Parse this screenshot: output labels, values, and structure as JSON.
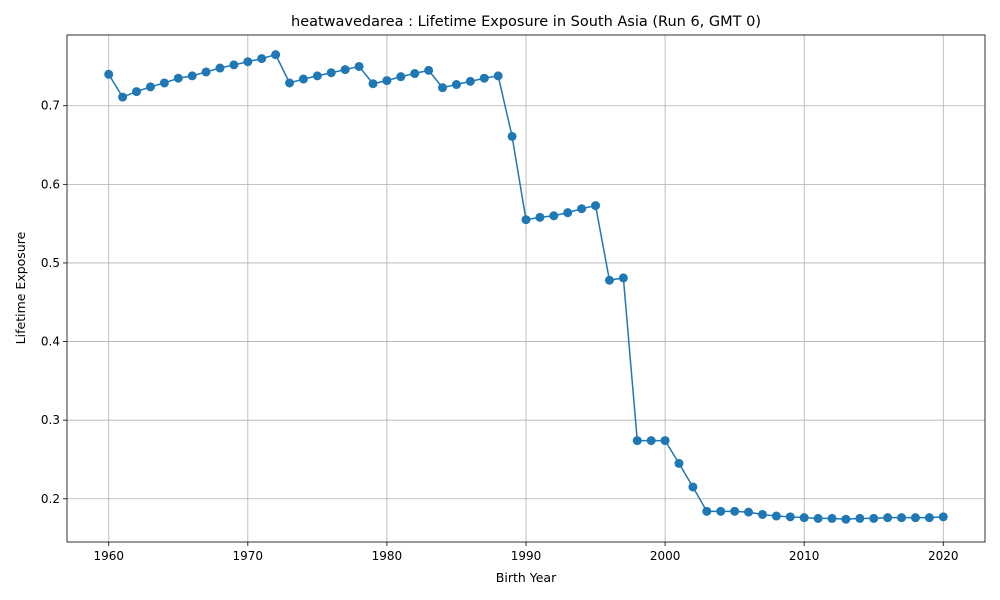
{
  "chart_data": {
    "type": "line",
    "title": "heatwavedarea : Lifetime Exposure in South Asia (Run 6, GMT 0)",
    "xlabel": "Birth Year",
    "ylabel": "Lifetime Exposure",
    "xlim": [
      1957,
      2023
    ],
    "ylim": [
      0.145,
      0.79
    ],
    "xticks": [
      1960,
      1970,
      1980,
      1990,
      2000,
      2010,
      2020
    ],
    "yticks": [
      0.2,
      0.3,
      0.4,
      0.5,
      0.6,
      0.7
    ],
    "grid": true,
    "marker": "circle",
    "color": "#1f77b4",
    "series": [
      {
        "x": [
          1960,
          1961,
          1962,
          1963,
          1964,
          1965,
          1966,
          1967,
          1968,
          1969,
          1970,
          1971,
          1972,
          1973,
          1974,
          1975,
          1976,
          1977,
          1978,
          1979,
          1980,
          1981,
          1982,
          1983,
          1984,
          1985,
          1986,
          1987,
          1988,
          1989,
          1990,
          1991,
          1992,
          1993,
          1994,
          1995,
          1996,
          1997,
          1998,
          1999,
          2000,
          2001,
          2002,
          2003,
          2004,
          2005,
          2006,
          2007,
          2008,
          2009,
          2010,
          2011,
          2012,
          2013,
          2014,
          2015,
          2016,
          2017,
          2018,
          2019,
          2020
        ],
        "values": [
          0.74,
          0.711,
          0.718,
          0.724,
          0.729,
          0.735,
          0.738,
          0.743,
          0.748,
          0.752,
          0.756,
          0.76,
          0.765,
          0.729,
          0.734,
          0.738,
          0.742,
          0.746,
          0.75,
          0.728,
          0.732,
          0.737,
          0.741,
          0.745,
          0.723,
          0.727,
          0.731,
          0.735,
          0.738,
          0.661,
          0.555,
          0.558,
          0.56,
          0.564,
          0.569,
          0.573,
          0.478,
          0.481,
          0.274,
          0.274,
          0.274,
          0.245,
          0.215,
          0.184,
          0.184,
          0.184,
          0.183,
          0.18,
          0.178,
          0.177,
          0.176,
          0.175,
          0.175,
          0.174,
          0.175,
          0.175,
          0.176,
          0.176,
          0.176,
          0.176,
          0.177
        ]
      }
    ]
  }
}
